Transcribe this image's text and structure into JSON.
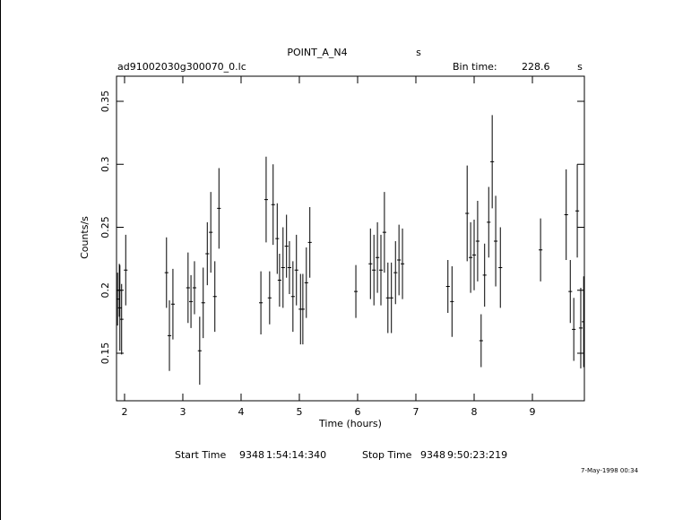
{
  "chart_data": {
    "type": "errorbar",
    "title": "POINT_A_N4",
    "title_unit": "s",
    "file_name": "ad91002030g300070_0.lc",
    "bin_time_label": "Bin time:",
    "bin_time": 228.6,
    "bin_time_unit": "s",
    "xlabel": "Time (hours)",
    "ylabel": "Counts/s",
    "footer": [
      "Start Time",
      "9348",
      "1:54:14:340",
      "Stop Time",
      "9348",
      "9:50:23:219"
    ],
    "date_stamp": "7-May-1998 00:34",
    "color": "#000000",
    "xlim": [
      1.862,
      9.892
    ],
    "ylim": [
      0.1123,
      0.3699
    ],
    "xticks": [
      2,
      3,
      4,
      5,
      6,
      7,
      8,
      9
    ],
    "yticks": [
      0.15,
      0.2,
      0.25,
      0.3,
      0.35
    ],
    "x": [
      1.88,
      1.91,
      1.92,
      1.95,
      2.02,
      2.72,
      2.77,
      2.83,
      3.09,
      3.14,
      3.2,
      3.29,
      3.35,
      3.42,
      3.48,
      3.55,
      3.62,
      4.34,
      4.43,
      4.49,
      4.55,
      4.62,
      4.66,
      4.72,
      4.78,
      4.83,
      4.89,
      4.95,
      5.02,
      5.06,
      5.12,
      5.18,
      5.97,
      6.22,
      6.28,
      6.34,
      6.4,
      6.46,
      6.52,
      6.58,
      6.65,
      6.71,
      6.77,
      7.55,
      7.62,
      7.88,
      7.94,
      8.0,
      8.06,
      8.12,
      8.18,
      8.25,
      8.31,
      8.37,
      8.45,
      9.14,
      9.58,
      9.65,
      9.71,
      9.77,
      9.83,
      9.88
    ],
    "values": [
      0.193,
      0.2,
      0.186,
      0.177,
      0.216,
      0.214,
      0.164,
      0.189,
      0.202,
      0.191,
      0.202,
      0.152,
      0.19,
      0.229,
      0.246,
      0.195,
      0.265,
      0.19,
      0.272,
      0.194,
      0.268,
      0.241,
      0.208,
      0.218,
      0.235,
      0.218,
      0.195,
      0.216,
      0.185,
      0.185,
      0.206,
      0.238,
      0.199,
      0.221,
      0.216,
      0.226,
      0.216,
      0.246,
      0.194,
      0.194,
      0.214,
      0.224,
      0.221,
      0.203,
      0.191,
      0.261,
      0.226,
      0.228,
      0.239,
      0.16,
      0.212,
      0.254,
      0.302,
      0.239,
      0.218,
      0.232,
      0.26,
      0.199,
      0.169,
      0.263,
      0.17,
      0.175
    ],
    "errors": [
      0.021,
      0.021,
      0.034,
      0.028,
      0.028,
      0.028,
      0.028,
      0.028,
      0.028,
      0.021,
      0.021,
      0.027,
      0.028,
      0.025,
      0.032,
      0.028,
      0.032,
      0.025,
      0.034,
      0.021,
      0.032,
      0.028,
      0.021,
      0.032,
      0.025,
      0.021,
      0.028,
      0.028,
      0.028,
      0.028,
      0.028,
      0.028,
      0.021,
      0.028,
      0.028,
      0.028,
      0.028,
      0.032,
      0.028,
      0.028,
      0.025,
      0.028,
      0.028,
      0.021,
      0.028,
      0.038,
      0.028,
      0.028,
      0.032,
      0.021,
      0.025,
      0.028,
      0.037,
      0.036,
      0.032,
      0.025,
      0.036,
      0.025,
      0.025,
      0.037,
      0.032,
      0.036
    ]
  }
}
